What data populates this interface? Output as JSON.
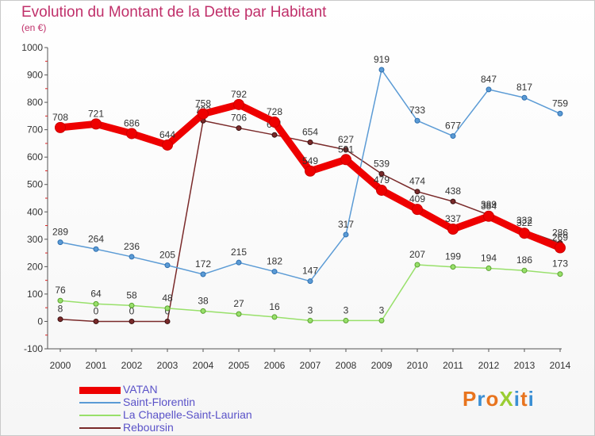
{
  "header": {
    "title": "Evolution du Montant de la Dette par Habitant",
    "subtitle": "(en €)"
  },
  "logo": {
    "text": "ProXiti"
  },
  "chart_data": {
    "type": "line",
    "title": "Evolution du Montant de la Dette par Habitant",
    "subtitle": "(en €)",
    "xlabel": "",
    "ylabel": "",
    "ylim": [
      -100,
      1000
    ],
    "y_ticks": [
      -100,
      0,
      100,
      200,
      300,
      400,
      500,
      600,
      700,
      800,
      900,
      1000
    ],
    "x": [
      "2000",
      "2001",
      "2002",
      "2003",
      "2004",
      "2005",
      "2006",
      "2007",
      "2008",
      "2009",
      "2010",
      "2011",
      "2012",
      "2013",
      "2014"
    ],
    "grid": false,
    "legend_position": "bottom-left",
    "series": [
      {
        "name": "Reboursin",
        "color": "#7a2a2a",
        "values": [
          8,
          0,
          0,
          0,
          733,
          706,
          681,
          654,
          627,
          539,
          474,
          438,
          389,
          332,
          286
        ]
      },
      {
        "name": "Saint-Florentin",
        "color": "#5b9bd5",
        "values": [
          289,
          264,
          236,
          205,
          172,
          215,
          182,
          147,
          317,
          919,
          733,
          677,
          847,
          817,
          759
        ]
      },
      {
        "name": "La Chapelle-Saint-Laurian",
        "color": "#98e06a",
        "values": [
          76,
          64,
          58,
          48,
          38,
          27,
          16,
          3,
          3,
          3,
          207,
          199,
          194,
          186,
          173
        ]
      },
      {
        "name": "VATAN",
        "color": "#ee0000",
        "values": [
          708,
          721,
          686,
          644,
          758,
          792,
          728,
          549,
          591,
          479,
          409,
          337,
          384,
          322,
          269
        ]
      }
    ],
    "legend_order": [
      "VATAN",
      "Saint-Florentin",
      "La Chapelle-Saint-Laurian",
      "Reboursin"
    ]
  }
}
